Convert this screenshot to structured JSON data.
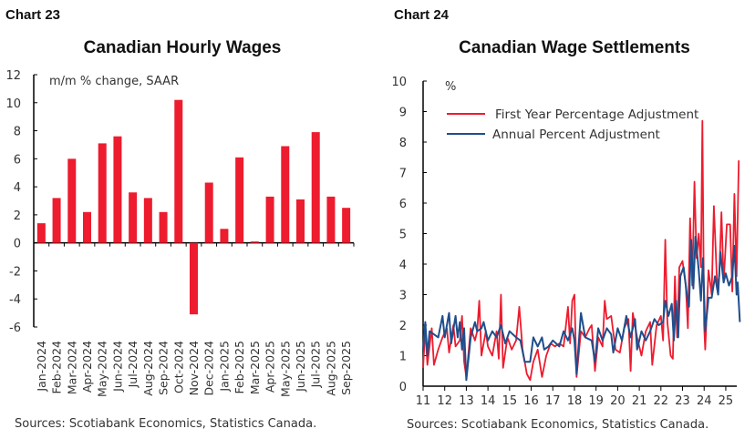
{
  "chart_data": [
    {
      "type": "bar",
      "label": "Chart 23",
      "title": "Canadian Hourly Wages",
      "ylabel": "m/m % change, SAAR",
      "ylim": [
        -6,
        12
      ],
      "yticks": [
        12,
        10,
        8,
        6,
        4,
        2,
        0,
        -2,
        -4,
        -6
      ],
      "categories": [
        "Jan-2024",
        "Feb-2024",
        "Mar-2024",
        "Apr-2024",
        "May-2024",
        "Jun-2024",
        "Jul-2024",
        "Aug-2024",
        "Sep-2024",
        "Oct-2024",
        "Nov-2024",
        "Dec-2024",
        "Jan-2025",
        "Feb-2025",
        "Mar-2025",
        "Apr-2025",
        "May-2025",
        "Jun-2025",
        "Jul-2025",
        "Aug-2025",
        "Sep-2025"
      ],
      "values": [
        1.4,
        3.2,
        6.0,
        2.2,
        7.1,
        7.6,
        3.6,
        3.2,
        2.2,
        10.2,
        -5.1,
        4.3,
        1.0,
        6.1,
        0.1,
        3.3,
        6.9,
        3.1,
        7.9,
        3.3,
        2.5
      ],
      "color": "#ed1c2e",
      "source": "Sources: Scotiabank Economics, Statistics Canada."
    },
    {
      "type": "line",
      "label": "Chart 24",
      "title": "Canadian Wage Settlements",
      "ylabel": "%",
      "ylim": [
        0,
        10
      ],
      "yticks": [
        10,
        9,
        8,
        7,
        6,
        5,
        4,
        3,
        2,
        1,
        0
      ],
      "xlim": [
        2011,
        2025.7
      ],
      "xticks": [
        "11",
        "12",
        "13",
        "14",
        "15",
        "16",
        "17",
        "18",
        "19",
        "20",
        "21",
        "22",
        "23",
        "24",
        "25"
      ],
      "legend": "top-left",
      "series": [
        {
          "name": "First Year Percentage Adjustment",
          "color": "#ed1c2e",
          "points": [
            [
              2011.0,
              0.6
            ],
            [
              2011.1,
              1.9
            ],
            [
              2011.2,
              0.7
            ],
            [
              2011.4,
              1.9
            ],
            [
              2011.5,
              0.7
            ],
            [
              2011.7,
              1.2
            ],
            [
              2011.9,
              1.6
            ],
            [
              2012.1,
              1.9
            ],
            [
              2012.2,
              1.1
            ],
            [
              2012.4,
              2.0
            ],
            [
              2012.5,
              1.3
            ],
            [
              2012.7,
              1.5
            ],
            [
              2012.8,
              2.3
            ],
            [
              2012.9,
              0.8
            ],
            [
              2013.0,
              0.3
            ],
            [
              2013.2,
              1.9
            ],
            [
              2013.4,
              1.5
            ],
            [
              2013.5,
              1.8
            ],
            [
              2013.6,
              2.8
            ],
            [
              2013.7,
              1.0
            ],
            [
              2013.9,
              1.8
            ],
            [
              2014.0,
              1.3
            ],
            [
              2014.2,
              1.0
            ],
            [
              2014.4,
              1.8
            ],
            [
              2014.5,
              0.9
            ],
            [
              2014.6,
              3.0
            ],
            [
              2014.7,
              0.6
            ],
            [
              2014.9,
              1.6
            ],
            [
              2015.1,
              1.2
            ],
            [
              2015.3,
              1.5
            ],
            [
              2015.45,
              2.6
            ],
            [
              2015.6,
              1.2
            ],
            [
              2015.8,
              0.4
            ],
            [
              2015.95,
              0.2
            ],
            [
              2016.1,
              0.8
            ],
            [
              2016.3,
              1.2
            ],
            [
              2016.5,
              0.3
            ],
            [
              2016.7,
              1.0
            ],
            [
              2016.9,
              1.4
            ],
            [
              2017.1,
              1.3
            ],
            [
              2017.3,
              1.4
            ],
            [
              2017.5,
              1.3
            ],
            [
              2017.7,
              2.6
            ],
            [
              2017.8,
              1.4
            ],
            [
              2017.9,
              2.8
            ],
            [
              2018.0,
              3.0
            ],
            [
              2018.1,
              0.3
            ],
            [
              2018.3,
              1.8
            ],
            [
              2018.5,
              1.6
            ],
            [
              2018.7,
              1.9
            ],
            [
              2018.8,
              2.0
            ],
            [
              2018.95,
              0.5
            ],
            [
              2019.1,
              1.6
            ],
            [
              2019.3,
              1.3
            ],
            [
              2019.4,
              2.8
            ],
            [
              2019.5,
              2.2
            ],
            [
              2019.7,
              2.3
            ],
            [
              2019.9,
              1.2
            ],
            [
              2020.1,
              1.1
            ],
            [
              2020.3,
              1.9
            ],
            [
              2020.5,
              2.2
            ],
            [
              2020.6,
              0.5
            ],
            [
              2020.7,
              2.4
            ],
            [
              2020.9,
              1.6
            ],
            [
              2021.1,
              1.0
            ],
            [
              2021.3,
              1.8
            ],
            [
              2021.5,
              2.1
            ],
            [
              2021.6,
              0.7
            ],
            [
              2021.8,
              2.0
            ],
            [
              2022.0,
              2.3
            ],
            [
              2022.1,
              1.5
            ],
            [
              2022.2,
              4.8
            ],
            [
              2022.3,
              2.1
            ],
            [
              2022.45,
              1.0
            ],
            [
              2022.55,
              0.9
            ],
            [
              2022.65,
              3.6
            ],
            [
              2022.75,
              1.6
            ],
            [
              2022.85,
              3.9
            ],
            [
              2023.0,
              4.1
            ],
            [
              2023.15,
              3.3
            ],
            [
              2023.25,
              1.9
            ],
            [
              2023.35,
              5.5
            ],
            [
              2023.45,
              3.3
            ],
            [
              2023.55,
              6.7
            ],
            [
              2023.65,
              4.2
            ],
            [
              2023.75,
              5.0
            ],
            [
              2023.85,
              3.9
            ],
            [
              2023.92,
              8.7
            ],
            [
              2024.0,
              2.0
            ],
            [
              2024.05,
              1.2
            ],
            [
              2024.2,
              3.8
            ],
            [
              2024.35,
              3.0
            ],
            [
              2024.45,
              5.9
            ],
            [
              2024.6,
              3.3
            ],
            [
              2024.7,
              3.6
            ],
            [
              2024.8,
              5.7
            ],
            [
              2024.9,
              3.4
            ],
            [
              2025.05,
              5.3
            ],
            [
              2025.2,
              5.3
            ],
            [
              2025.3,
              3.1
            ],
            [
              2025.4,
              6.3
            ],
            [
              2025.5,
              3.6
            ],
            [
              2025.6,
              7.4
            ]
          ]
        },
        {
          "name": "Annual Percent Adjustment",
          "color": "#1f4e8c",
          "points": [
            [
              2011.0,
              1.2
            ],
            [
              2011.1,
              2.1
            ],
            [
              2011.2,
              1.0
            ],
            [
              2011.3,
              1.8
            ],
            [
              2011.5,
              1.7
            ],
            [
              2011.7,
              1.6
            ],
            [
              2011.9,
              2.3
            ],
            [
              2012.0,
              1.6
            ],
            [
              2012.2,
              2.4
            ],
            [
              2012.3,
              1.4
            ],
            [
              2012.5,
              2.3
            ],
            [
              2012.6,
              1.6
            ],
            [
              2012.7,
              2.1
            ],
            [
              2012.8,
              1.2
            ],
            [
              2012.9,
              1.9
            ],
            [
              2013.0,
              0.2
            ],
            [
              2013.2,
              1.6
            ],
            [
              2013.4,
              2.1
            ],
            [
              2013.5,
              1.8
            ],
            [
              2013.7,
              1.9
            ],
            [
              2013.8,
              2.1
            ],
            [
              2014.0,
              1.5
            ],
            [
              2014.2,
              1.8
            ],
            [
              2014.4,
              1.6
            ],
            [
              2014.6,
              2.0
            ],
            [
              2014.8,
              1.4
            ],
            [
              2015.0,
              1.8
            ],
            [
              2015.3,
              1.6
            ],
            [
              2015.5,
              1.5
            ],
            [
              2015.7,
              0.8
            ],
            [
              2015.95,
              0.8
            ],
            [
              2016.1,
              1.6
            ],
            [
              2016.3,
              1.3
            ],
            [
              2016.5,
              1.6
            ],
            [
              2016.6,
              1.2
            ],
            [
              2016.8,
              1.3
            ],
            [
              2017.0,
              1.5
            ],
            [
              2017.3,
              1.3
            ],
            [
              2017.5,
              1.8
            ],
            [
              2017.7,
              1.5
            ],
            [
              2017.9,
              1.9
            ],
            [
              2018.0,
              1.5
            ],
            [
              2018.1,
              0.4
            ],
            [
              2018.3,
              2.4
            ],
            [
              2018.5,
              1.6
            ],
            [
              2018.8,
              1.5
            ],
            [
              2018.95,
              0.8
            ],
            [
              2019.1,
              1.9
            ],
            [
              2019.3,
              1.5
            ],
            [
              2019.5,
              1.9
            ],
            [
              2019.7,
              1.7
            ],
            [
              2019.8,
              1.1
            ],
            [
              2020.0,
              1.9
            ],
            [
              2020.2,
              1.5
            ],
            [
              2020.4,
              2.3
            ],
            [
              2020.6,
              1.6
            ],
            [
              2020.8,
              2.2
            ],
            [
              2020.9,
              1.2
            ],
            [
              2021.1,
              1.8
            ],
            [
              2021.3,
              1.5
            ],
            [
              2021.5,
              1.8
            ],
            [
              2021.7,
              2.2
            ],
            [
              2021.9,
              2.0
            ],
            [
              2022.1,
              2.1
            ],
            [
              2022.2,
              2.8
            ],
            [
              2022.35,
              2.3
            ],
            [
              2022.5,
              2.7
            ],
            [
              2022.6,
              1.5
            ],
            [
              2022.7,
              2.8
            ],
            [
              2022.8,
              1.6
            ],
            [
              2022.9,
              3.6
            ],
            [
              2023.05,
              3.9
            ],
            [
              2023.2,
              3.0
            ],
            [
              2023.3,
              2.6
            ],
            [
              2023.4,
              4.8
            ],
            [
              2023.5,
              3.2
            ],
            [
              2023.6,
              4.9
            ],
            [
              2023.75,
              3.8
            ],
            [
              2023.85,
              2.8
            ],
            [
              2023.95,
              4.2
            ],
            [
              2024.05,
              1.8
            ],
            [
              2024.2,
              2.9
            ],
            [
              2024.35,
              2.9
            ],
            [
              2024.5,
              3.6
            ],
            [
              2024.65,
              3.0
            ],
            [
              2024.75,
              4.4
            ],
            [
              2024.9,
              3.4
            ],
            [
              2025.0,
              3.7
            ],
            [
              2025.15,
              3.3
            ],
            [
              2025.3,
              3.6
            ],
            [
              2025.4,
              4.6
            ],
            [
              2025.5,
              3.0
            ],
            [
              2025.55,
              3.4
            ],
            [
              2025.65,
              2.1
            ]
          ]
        }
      ],
      "source": "Sources: Scotiabank Economics, Statistics Canada."
    }
  ]
}
